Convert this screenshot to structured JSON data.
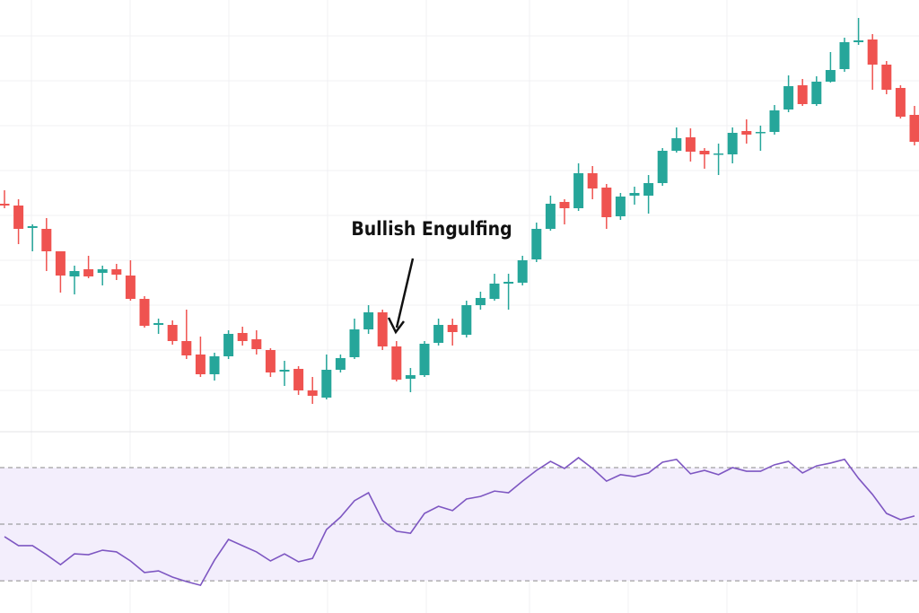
{
  "chart_data": [
    {
      "type": "candlestick",
      "annotation": "Bullish Engulfing",
      "up_color": "#26a69a",
      "down_color": "#ef5350",
      "ylim": [
        0,
        480
      ],
      "open": [
        253,
        251,
        226,
        225,
        200,
        172,
        180,
        176,
        180,
        173,
        147,
        118,
        118,
        100,
        85,
        63,
        83,
        109,
        102,
        90,
        66,
        69,
        45,
        37,
        68,
        82,
        113,
        132,
        94,
        58,
        62,
        98,
        118,
        107,
        140,
        147,
        164,
        165,
        191,
        225,
        255,
        248,
        287,
        271,
        239,
        262,
        262,
        276,
        312,
        327,
        312,
        308,
        308,
        334,
        332,
        333,
        358,
        385,
        364,
        389,
        403,
        433,
        436,
        408,
        382,
        352
      ],
      "high": [
        268,
        258,
        230,
        237,
        200,
        184,
        195,
        184,
        186,
        190,
        150,
        125,
        123,
        135,
        105,
        87,
        112,
        116,
        112,
        92,
        78,
        72,
        60,
        85,
        85,
        125,
        140,
        135,
        100,
        70,
        100,
        125,
        125,
        145,
        155,
        175,
        175,
        195,
        232,
        262,
        258,
        298,
        295,
        275,
        265,
        272,
        285,
        315,
        338,
        337,
        315,
        320,
        338,
        347,
        340,
        363,
        396,
        392,
        395,
        422,
        438,
        460,
        442,
        412,
        385,
        362
      ],
      "low": [
        248,
        208,
        200,
        178,
        154,
        152,
        170,
        162,
        168,
        145,
        115,
        108,
        96,
        80,
        60,
        56,
        80,
        95,
        85,
        60,
        50,
        40,
        30,
        35,
        65,
        80,
        108,
        90,
        55,
        43,
        60,
        95,
        95,
        104,
        135,
        145,
        135,
        162,
        188,
        223,
        230,
        245,
        258,
        225,
        235,
        252,
        242,
        273,
        310,
        300,
        292,
        285,
        298,
        320,
        312,
        330,
        355,
        362,
        362,
        388,
        400,
        430,
        380,
        375,
        348,
        318
      ],
      "close": [
        251,
        225,
        228,
        200,
        173,
        178,
        172,
        180,
        174,
        147,
        117,
        120,
        100,
        84,
        63,
        83,
        108,
        100,
        91,
        65,
        68,
        45,
        39,
        68,
        81,
        113,
        132,
        94,
        57,
        62,
        97,
        118,
        110,
        140,
        148,
        164,
        166,
        190,
        225,
        253,
        248,
        287,
        270,
        238,
        261,
        265,
        276,
        312,
        326,
        311,
        308,
        309,
        332,
        330,
        333,
        357,
        384,
        364,
        389,
        402,
        433,
        435,
        408,
        380,
        350,
        322
      ]
    },
    {
      "type": "line",
      "color": "#7e57c2",
      "band_color": "#f3eefc",
      "ylim": [
        18.6,
        83
      ],
      "levels": [
        30,
        50,
        70
      ],
      "values": [
        45.6,
        42.4,
        42.4,
        39.2,
        35.7,
        39.5,
        39.2,
        40.8,
        40.2,
        37.0,
        32.9,
        33.5,
        31.3,
        29.7,
        28.4,
        37.3,
        44.6,
        42.4,
        40.2,
        37.0,
        39.5,
        36.7,
        37.9,
        48.1,
        52.5,
        58.3,
        61.1,
        51.3,
        47.5,
        46.8,
        53.8,
        56.3,
        54.8,
        58.9,
        59.8,
        61.7,
        61.1,
        65.2,
        69.0,
        72.2,
        69.7,
        73.5,
        69.7,
        65.2,
        67.5,
        66.8,
        68.1,
        71.9,
        72.9,
        67.8,
        69.0,
        67.5,
        70.0,
        68.7,
        68.7,
        71.0,
        72.2,
        68.1,
        70.6,
        71.6,
        72.9,
        66.2,
        60.5,
        53.8,
        51.6,
        52.9
      ]
    }
  ]
}
